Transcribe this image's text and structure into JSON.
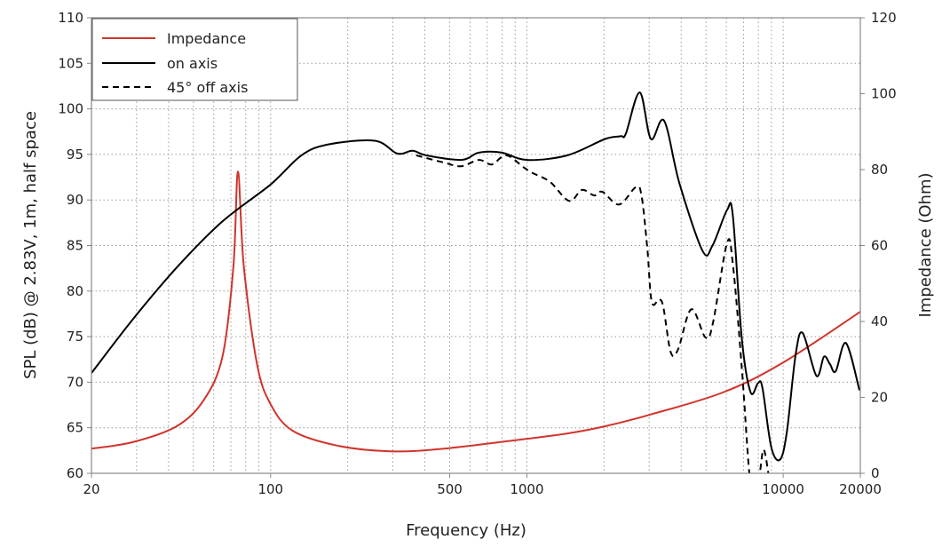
{
  "chart_data": {
    "type": "line",
    "xlabel": "Frequency (Hz)",
    "ylabel": "SPL (dB) @ 2.83V, 1m, half space",
    "y2label": "Impedance (Ohm)",
    "xscale": "log",
    "xlim": [
      20,
      20000
    ],
    "ylim": [
      60,
      110
    ],
    "y2lim": [
      0,
      120
    ],
    "grid": true,
    "legend_position": "top-left",
    "xticks": [
      "20",
      "100",
      "500",
      "1000",
      "10000",
      "20000"
    ],
    "xtick_values": [
      20,
      100,
      500,
      1000,
      10000,
      20000
    ],
    "yticks": [
      "110",
      "105",
      "100",
      "95",
      "90",
      "85",
      "80",
      "75",
      "70",
      "65",
      "60"
    ],
    "y2ticks": [
      "120",
      "100",
      "80",
      "60",
      "40",
      "20",
      "0"
    ],
    "series": [
      {
        "name": "Impedance",
        "axis": "right",
        "color": "#d0342c",
        "style": "solid",
        "x": [
          20,
          29,
          43,
          55,
          65,
          71.6,
          74.6,
          78.6,
          88.5,
          100,
          122,
          182,
          294,
          475,
          1000,
          1440,
          2020,
          3046,
          5870,
          10000,
          19850,
          20000
        ],
        "y": [
          6.5,
          8.2,
          12.4,
          19.4,
          31,
          54.5,
          79.5,
          54.5,
          28.8,
          18.2,
          11.2,
          7.3,
          5.8,
          6.5,
          9.1,
          10.5,
          12.4,
          15.5,
          21.4,
          29.2,
          42.4,
          42.6
        ]
      },
      {
        "name": "on axis",
        "axis": "left",
        "color": "#000000",
        "style": "solid",
        "x": [
          20,
          29,
          43.4,
          64.6,
          100,
          132,
          168,
          255,
          312,
          358,
          404,
          555,
          650,
          796,
          1000,
          1440,
          2020,
          2323,
          2434,
          2758,
          3046,
          3430,
          3940,
          4850,
          5300,
          6040,
          6360,
          6890,
          7460,
          7980,
          8300,
          8980,
          9720,
          10330,
          11180,
          11920,
          13480,
          14420,
          15210,
          16030,
          17580,
          19850
        ],
        "y": [
          71,
          76.9,
          82.7,
          87.6,
          91.7,
          94.9,
          96.1,
          96.5,
          95.1,
          95.4,
          94.9,
          94.4,
          95.2,
          95.2,
          94.4,
          94.9,
          96.7,
          97.0,
          97.3,
          101.8,
          96.7,
          98.7,
          91.8,
          84.4,
          85,
          88.9,
          88.3,
          74.9,
          68.9,
          69.9,
          69.4,
          62.9,
          61.5,
          64.5,
          73,
          75.4,
          70.7,
          72.8,
          72,
          71.2,
          74.3,
          69.1
        ]
      },
      {
        "name": "45° off axis",
        "axis": "left",
        "color": "#000000",
        "style": "dashed",
        "x": [
          370,
          475,
          555,
          650,
          730,
          830,
          970,
          1045,
          1230,
          1460,
          1640,
          1830,
          1970,
          2290,
          2660,
          2800,
          2950,
          3070,
          3280,
          3410,
          3640,
          3890,
          4380,
          4980,
          5320,
          6040,
          6360,
          6890,
          7360,
          7700,
          8060,
          8400,
          8860
        ],
        "y": [
          94.9,
          94.1,
          93.7,
          94.4,
          93.9,
          94.9,
          93.6,
          93,
          92,
          89.9,
          91.1,
          90.5,
          90.9,
          89.5,
          91.4,
          90.5,
          84.7,
          78.8,
          79.1,
          78.2,
          73.3,
          73.6,
          78,
          74.9,
          76.5,
          85.3,
          83,
          71.7,
          60.3,
          57,
          59.5,
          62.6,
          59
        ]
      }
    ]
  }
}
